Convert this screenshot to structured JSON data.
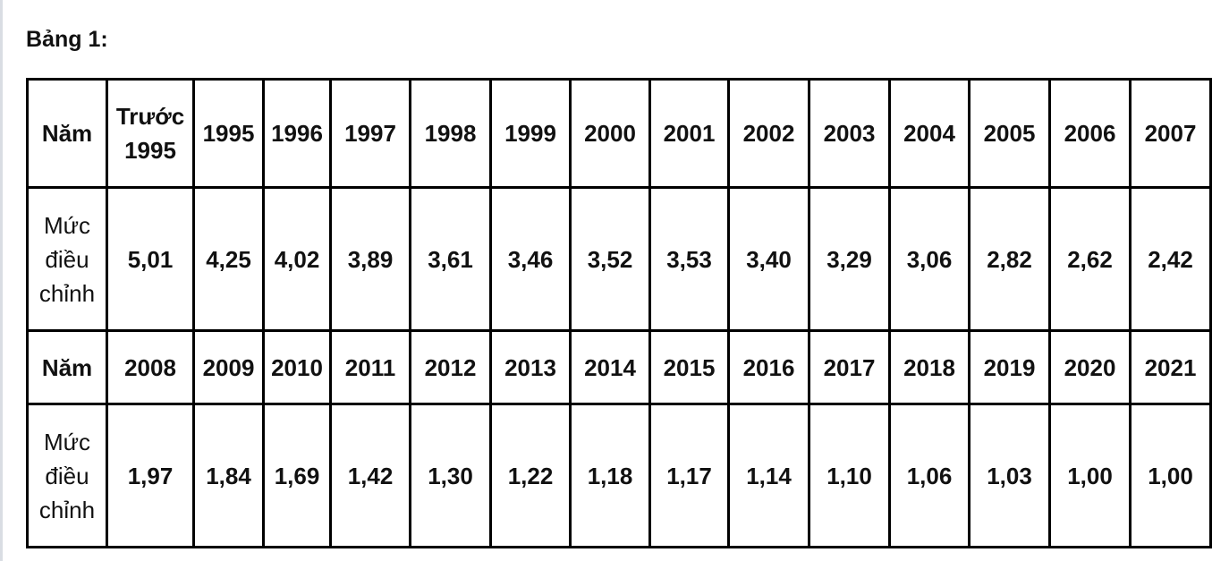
{
  "title": "Bảng 1:",
  "table": {
    "rows": [
      [
        "Năm",
        "Trước 1995",
        "1995",
        "1996",
        "1997",
        "1998",
        "1999",
        "2000",
        "2001",
        "2002",
        "2003",
        "2004",
        "2005",
        "2006",
        "2007"
      ],
      [
        "Mức điều chỉnh",
        "5,01",
        "4,25",
        "4,02",
        "3,89",
        "3,61",
        "3,46",
        "3,52",
        "3,53",
        "3,40",
        "3,29",
        "3,06",
        "2,82",
        "2,62",
        "2,42"
      ],
      [
        "Năm",
        "2008",
        "2009",
        "2010",
        "2011",
        "2012",
        "2013",
        "2014",
        "2015",
        "2016",
        "2017",
        "2018",
        "2019",
        "2020",
        "2021"
      ],
      [
        "Mức điều chỉnh",
        "1,97",
        "1,84",
        "1,69",
        "1,42",
        "1,30",
        "1,22",
        "1,18",
        "1,17",
        "1,14",
        "1,10",
        "1,06",
        "1,03",
        "1,00",
        "1,00"
      ]
    ]
  }
}
